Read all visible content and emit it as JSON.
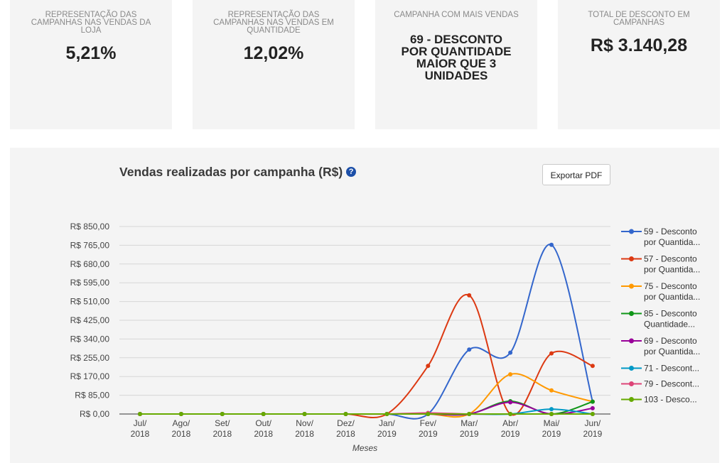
{
  "cards": [
    {
      "caption": "REPRESENTAÇÃO DAS CAMPANHAS NAS VENDAS DA LOJA",
      "value": "5,21%"
    },
    {
      "caption": "REPRESENTAÇÃO DAS CAMPANHAS NAS VENDAS EM QUANTIDADE",
      "value": "12,02%"
    },
    {
      "caption": "CAMPANHA COM MAIS VENDAS",
      "value": "69 - DESCONTO POR QUANTIDADE MAIOR QUE 3 UNIDADES"
    },
    {
      "caption": "TOTAL DE DESCONTO EM CAMPANHAS",
      "value": "R$ 3.140,28"
    }
  ],
  "panel": {
    "help_icon": "?",
    "export_label": "Exportar PDF"
  },
  "chart_data": {
    "type": "line",
    "title": "Vendas realizadas por campanha (R$)",
    "xlabel": "Meses",
    "ylabel": "",
    "categories": [
      [
        "Jul/",
        "2018"
      ],
      [
        "Ago/",
        "2018"
      ],
      [
        "Set/",
        "2018"
      ],
      [
        "Out/",
        "2018"
      ],
      [
        "Nov/",
        "2018"
      ],
      [
        "Dez/",
        "2018"
      ],
      [
        "Jan/",
        "2019"
      ],
      [
        "Fev/",
        "2019"
      ],
      [
        "Mar/",
        "2019"
      ],
      [
        "Abr/",
        "2019"
      ],
      [
        "Mai/",
        "2019"
      ],
      [
        "Jun/",
        "2019"
      ]
    ],
    "ylim": [
      0,
      850
    ],
    "yticks": [
      "R$ 0,00",
      "R$ 85,00",
      "R$ 170,00",
      "R$ 255,00",
      "R$ 340,00",
      "R$ 425,00",
      "R$ 510,00",
      "R$ 595,00",
      "R$ 680,00",
      "R$ 765,00",
      "R$ 850,00"
    ],
    "legend_position": "right",
    "grid": true,
    "series": [
      {
        "name": [
          "59 - Desconto",
          "por Quantida..."
        ],
        "color": "#3366cc",
        "values": [
          0,
          0,
          0,
          0,
          0,
          0,
          0,
          0,
          292,
          278,
          767,
          56
        ]
      },
      {
        "name": [
          "57 - Desconto",
          "por Quantida..."
        ],
        "color": "#dc3912",
        "values": [
          0,
          0,
          0,
          0,
          0,
          0,
          0,
          218,
          538,
          0,
          275,
          218
        ]
      },
      {
        "name": [
          "75 - Desconto",
          "por Quantida..."
        ],
        "color": "#ff9900",
        "values": [
          0,
          0,
          0,
          0,
          0,
          0,
          0,
          0,
          0,
          180,
          107,
          56
        ]
      },
      {
        "name": [
          "85 - Desconto",
          "Quantidade..."
        ],
        "color": "#109618",
        "values": [
          0,
          0,
          0,
          0,
          0,
          0,
          0,
          0,
          0,
          58,
          0,
          56
        ]
      },
      {
        "name": [
          "69 - Desconto",
          "por Quantida..."
        ],
        "color": "#990099",
        "values": [
          0,
          0,
          0,
          0,
          0,
          0,
          0,
          0,
          0,
          53,
          0,
          26
        ]
      },
      {
        "name": [
          "71 - Descont..."
        ],
        "color": "#0099c6",
        "values": [
          0,
          0,
          0,
          0,
          0,
          0,
          0,
          0,
          0,
          0,
          22,
          0
        ]
      },
      {
        "name": [
          "79 - Descont..."
        ],
        "color": "#dd4477",
        "values": [
          0,
          0,
          0,
          0,
          0,
          0,
          0,
          5,
          0,
          0,
          0,
          0
        ]
      },
      {
        "name": [
          "103 - Desco..."
        ],
        "color": "#66aa00",
        "values": [
          0,
          0,
          0,
          0,
          0,
          0,
          0,
          0,
          0,
          0,
          0,
          0
        ]
      }
    ]
  }
}
